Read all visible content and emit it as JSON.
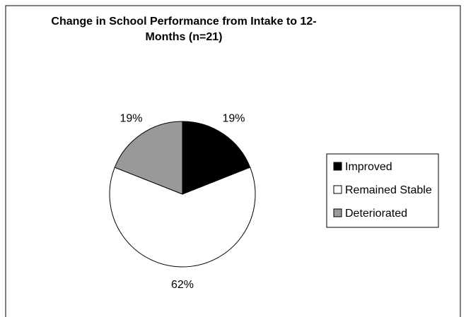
{
  "chart_data": {
    "type": "pie",
    "title": "Change in School Performance from Intake to 12-Months (n=21)",
    "categories": [
      "Improved",
      "Remained Stable",
      "Deteriorated"
    ],
    "values": [
      19,
      62,
      19
    ],
    "value_labels": [
      "19%",
      "62%",
      "19%"
    ],
    "colors": [
      "#000000",
      "#ffffff",
      "#999999"
    ],
    "legend": "right"
  }
}
